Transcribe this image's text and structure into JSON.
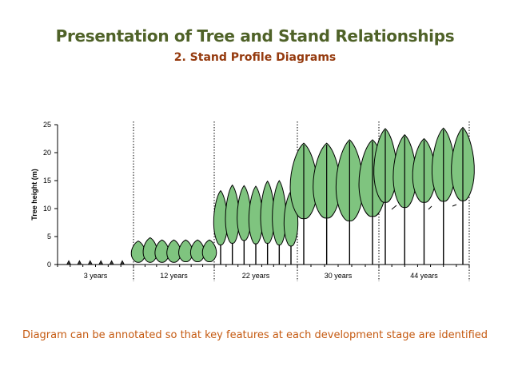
{
  "slide": {
    "title": "Presentation of Tree and Stand Relationships",
    "subtitle": "2. Stand Profile Diagrams",
    "footnote": "Diagram can be annotated so that key features at each development stage are identified"
  },
  "diagram": {
    "ylabel": "Tree height (m)",
    "y_ticks": [
      "25",
      "20",
      "15",
      "10",
      "5",
      "0"
    ],
    "ylim": [
      0,
      25
    ],
    "crown_color": "#7fc47f",
    "panels": [
      {
        "label": "3 years",
        "trees": [
          {
            "top": 0.4
          },
          {
            "top": 0.4
          },
          {
            "top": 0.4
          },
          {
            "top": 0.4
          },
          {
            "top": 0.4
          },
          {
            "top": 0.4
          }
        ]
      },
      {
        "label": "12 years",
        "trees": [
          {
            "top": 4.2,
            "base": 0.4,
            "stem": false
          },
          {
            "top": 4.8,
            "base": 0.4,
            "stem": false
          },
          {
            "top": 4.4,
            "base": 0.4,
            "stem": false
          },
          {
            "top": 4.4,
            "base": 0.4,
            "stem": false
          },
          {
            "top": 4.4,
            "base": 0.5,
            "stem": false
          },
          {
            "top": 4.4,
            "base": 0.5,
            "stem": false
          },
          {
            "top": 4.4,
            "base": 0.5,
            "stem": false
          }
        ]
      },
      {
        "label": "22 years",
        "trees": [
          {
            "top": 13.2,
            "base": 3.5,
            "stem": true
          },
          {
            "top": 14.2,
            "base": 3.8,
            "stem": true
          },
          {
            "top": 14.1,
            "base": 4.3,
            "stem": true
          },
          {
            "top": 14.0,
            "base": 3.7,
            "stem": true
          },
          {
            "top": 14.9,
            "base": 3.8,
            "stem": true
          },
          {
            "top": 15.0,
            "base": 3.5,
            "stem": true
          },
          {
            "top": 13.1,
            "base": 3.3,
            "stem": true
          }
        ]
      },
      {
        "label": "30 years",
        "trees": [
          {
            "top": 21.7,
            "base": 8.2,
            "stem": true
          },
          {
            "top": 21.7,
            "base": 8.3,
            "stem": true
          },
          {
            "top": 22.3,
            "base": 7.8,
            "stem": true
          },
          {
            "top": 22.3,
            "base": 8.6,
            "stem": true
          }
        ]
      },
      {
        "label": "44 years",
        "trees": [
          {
            "top": 24.3,
            "base": 11.1,
            "stem": true
          },
          {
            "top": 23.2,
            "base": 10.2,
            "stem": true
          },
          {
            "top": 22.5,
            "base": 11.1,
            "stem": true
          },
          {
            "top": 24.4,
            "base": 11.3,
            "stem": true
          },
          {
            "top": 24.5,
            "base": 11.4,
            "stem": true
          }
        ]
      }
    ]
  }
}
